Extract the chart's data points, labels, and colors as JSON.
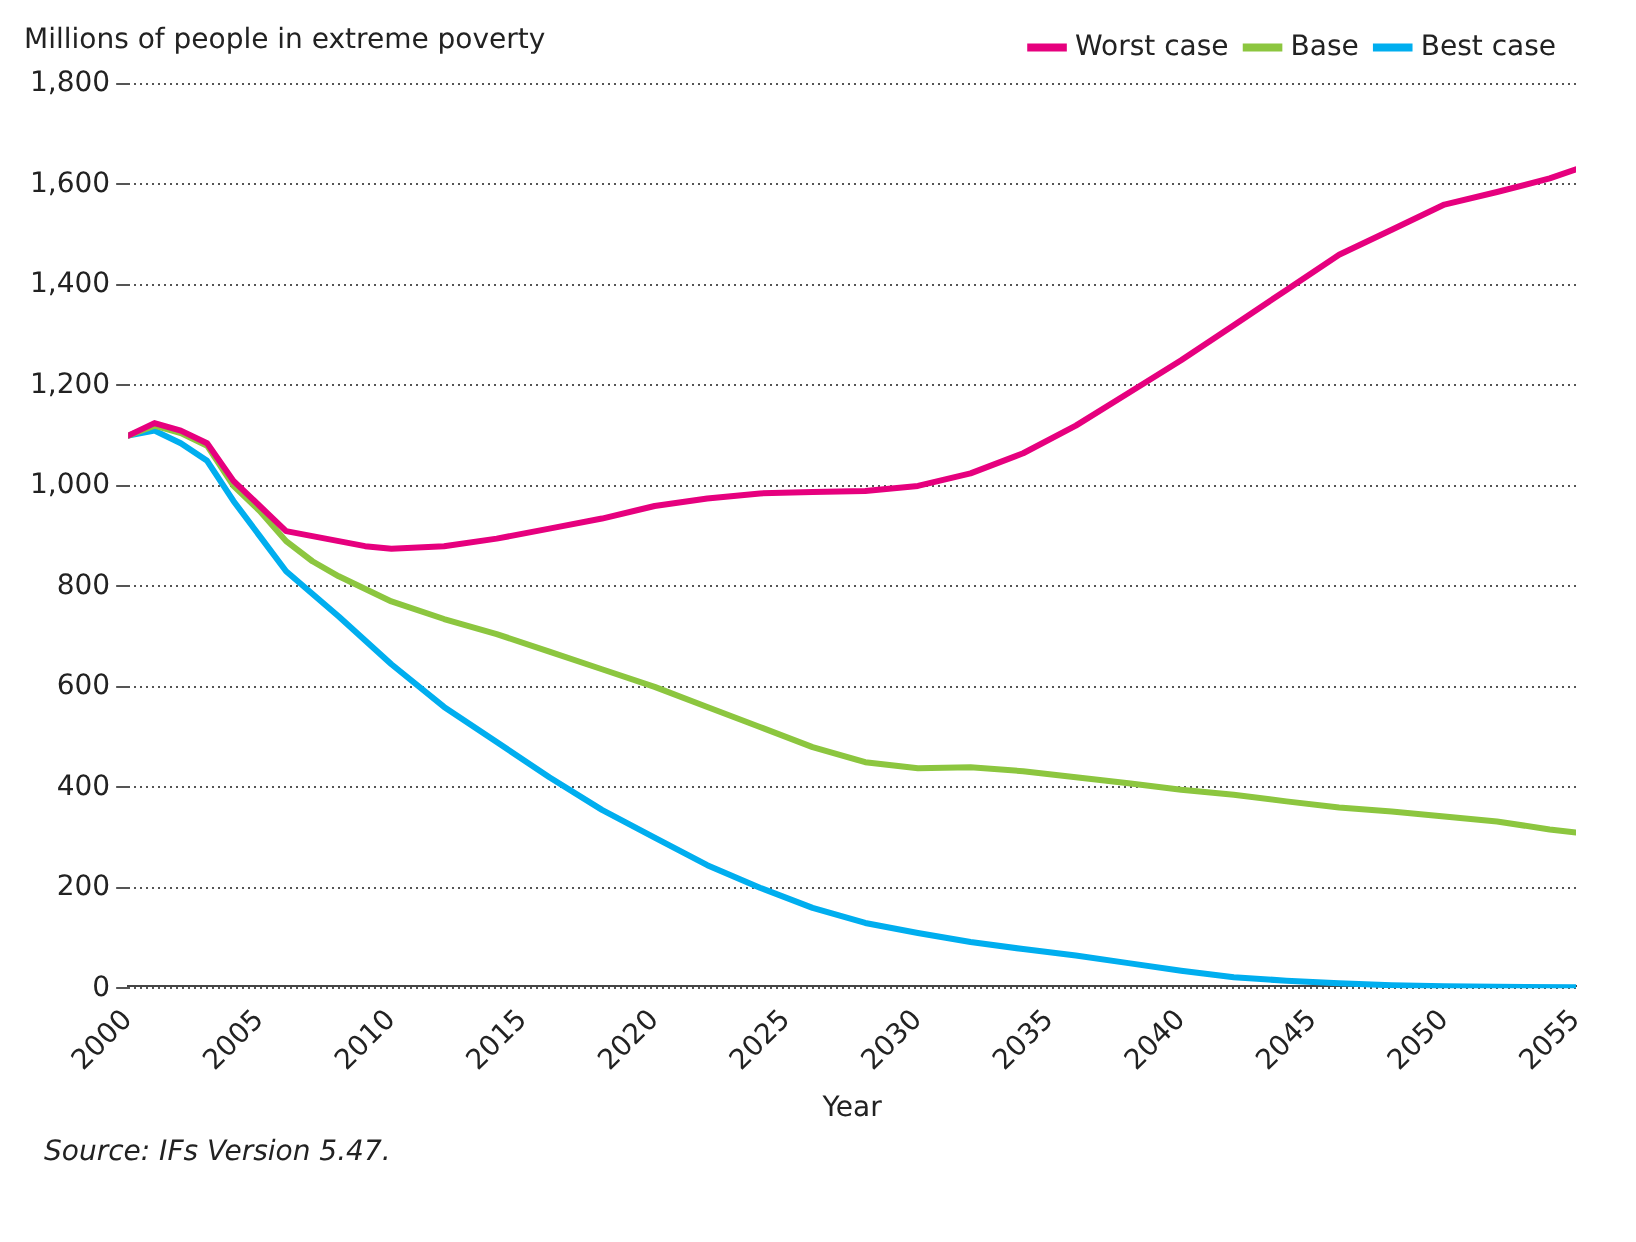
{
  "chart_data": {
    "type": "line",
    "ylabel": "Millions of people in extreme poverty",
    "xlabel": "Year",
    "annotations": [
      "Source: IFs Version 5.47."
    ],
    "xlim": [
      2000,
      2055
    ],
    "xticks": [
      2000,
      2005,
      2010,
      2015,
      2020,
      2025,
      2030,
      2035,
      2040,
      2045,
      2050,
      2055
    ],
    "ylim": [
      0,
      1800
    ],
    "yticks": [
      0,
      200,
      400,
      600,
      800,
      {
        "value": 1000,
        "label": "1,000"
      },
      {
        "value": 1200,
        "label": "1,200"
      },
      {
        "value": 1400,
        "label": "1,400"
      },
      {
        "value": 1600,
        "label": "1,600"
      },
      {
        "value": 1800,
        "label": "1,800"
      }
    ],
    "grid": "y",
    "legend": "top right",
    "marker": "none",
    "line_style": "solid",
    "series": [
      {
        "name": "Worst case",
        "color": "#e6007e",
        "x": [
          2000,
          2001,
          2002,
          2003,
          2004,
          2005,
          2006,
          2007,
          2008,
          2009,
          2010,
          2012,
          2014,
          2016,
          2018,
          2020,
          2022,
          2024,
          2026,
          2028,
          2030,
          2032,
          2034,
          2036,
          2038,
          2040,
          2042,
          2044,
          2046,
          2048,
          2050,
          2052,
          2054,
          2055
        ],
        "values": [
          1100,
          1125,
          1110,
          1085,
          1010,
          960,
          910,
          900,
          890,
          880,
          875,
          880,
          895,
          915,
          935,
          960,
          975,
          985,
          988,
          990,
          1000,
          1025,
          1065,
          1120,
          1185,
          1250,
          1320,
          1390,
          1460,
          1510,
          1560,
          1585,
          1612,
          1630
        ]
      },
      {
        "name": "Base",
        "color": "#8cc63f",
        "x": [
          2000,
          2001,
          2002,
          2003,
          2004,
          2005,
          2006,
          2007,
          2008,
          2010,
          2012,
          2014,
          2016,
          2018,
          2020,
          2022,
          2024,
          2026,
          2028,
          2030,
          2032,
          2034,
          2036,
          2038,
          2040,
          2042,
          2044,
          2046,
          2048,
          2050,
          2052,
          2054,
          2055
        ],
        "values": [
          1100,
          1120,
          1105,
          1080,
          1000,
          950,
          890,
          850,
          820,
          770,
          735,
          705,
          670,
          635,
          600,
          560,
          520,
          480,
          450,
          438,
          440,
          432,
          420,
          408,
          395,
          385,
          372,
          360,
          352,
          342,
          332,
          316,
          310
        ]
      },
      {
        "name": "Best case",
        "color": "#00aeef",
        "x": [
          2000,
          2001,
          2002,
          2003,
          2004,
          2005,
          2006,
          2008,
          2010,
          2012,
          2014,
          2016,
          2018,
          2020,
          2022,
          2024,
          2026,
          2028,
          2030,
          2032,
          2034,
          2036,
          2038,
          2040,
          2042,
          2044,
          2046,
          2048,
          2050,
          2052,
          2055
        ],
        "values": [
          1100,
          1110,
          1085,
          1050,
          970,
          900,
          830,
          740,
          645,
          560,
          490,
          420,
          355,
          300,
          245,
          200,
          160,
          130,
          110,
          92,
          78,
          65,
          50,
          35,
          22,
          15,
          10,
          6,
          4,
          3,
          2
        ]
      }
    ]
  }
}
